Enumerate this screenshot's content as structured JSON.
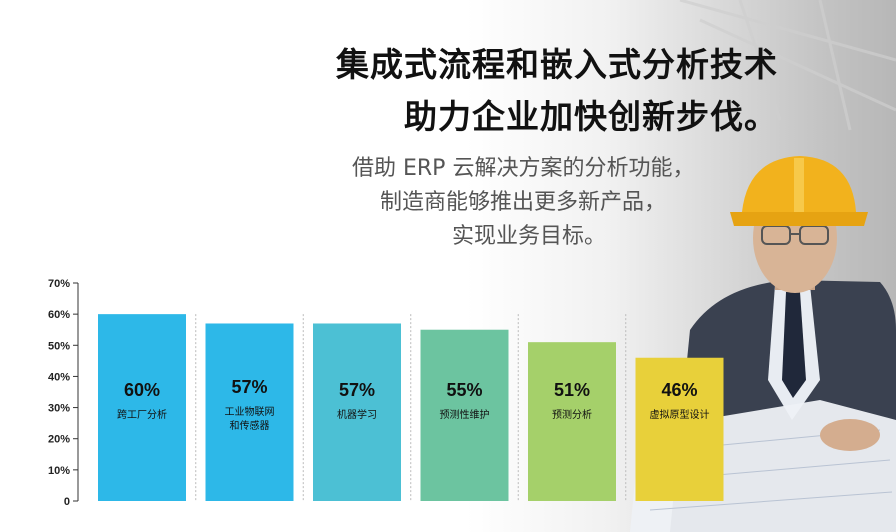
{
  "headline": {
    "line1": "集成式流程和嵌入式分析技术",
    "line2": "助力企业加快创新步伐。"
  },
  "subheadline": {
    "line1": "借助 ERP 云解决方案的分析功能，",
    "line2": "制造商能够推出更多新产品，",
    "line3": "实现业务目标。"
  },
  "chart_data": {
    "type": "bar",
    "categories": [
      [
        "跨工厂分析"
      ],
      [
        "工业物联网",
        "和传感器"
      ],
      [
        "机器学习"
      ],
      [
        "预测性维护"
      ],
      [
        "预测分析"
      ],
      [
        "虚拟原型设计"
      ]
    ],
    "values": [
      60,
      57,
      57,
      55,
      51,
      46
    ],
    "value_labels": [
      "60%",
      "57%",
      "57%",
      "55%",
      "51%",
      "46%"
    ],
    "bar_colors": [
      "#2db8e8",
      "#2db8e8",
      "#4cc0d4",
      "#6cc4a0",
      "#a5d06a",
      "#e8d03a"
    ],
    "yticks": [
      "0",
      "10%",
      "20%",
      "30%",
      "40%",
      "50%",
      "60%",
      "70%"
    ],
    "ylim": [
      0,
      70
    ],
    "grid": "vertical dotted lines between bars",
    "xlabel": "",
    "ylabel": ""
  }
}
